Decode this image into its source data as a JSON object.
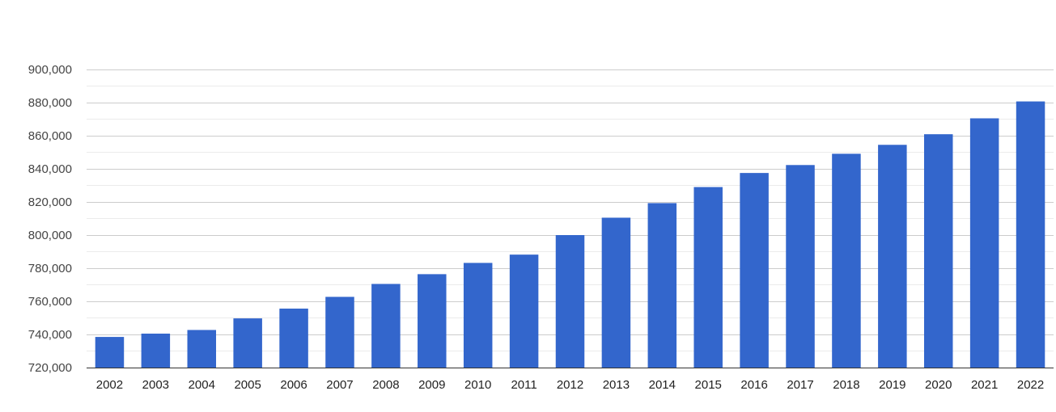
{
  "chart_data": {
    "type": "bar",
    "categories": [
      "2002",
      "2003",
      "2004",
      "2005",
      "2006",
      "2007",
      "2008",
      "2009",
      "2010",
      "2011",
      "2012",
      "2013",
      "2014",
      "2015",
      "2016",
      "2017",
      "2018",
      "2019",
      "2020",
      "2021",
      "2022"
    ],
    "values": [
      738500,
      740500,
      742700,
      749700,
      755600,
      762700,
      770500,
      776400,
      783200,
      788200,
      800000,
      810500,
      819300,
      829000,
      837500,
      842300,
      849100,
      854500,
      860900,
      870500,
      880700
    ],
    "ylim": [
      720000,
      900000
    ],
    "yticks": [
      720000,
      740000,
      760000,
      780000,
      800000,
      820000,
      840000,
      860000,
      880000,
      900000
    ],
    "ytick_labels": [
      "720,000",
      "740,000",
      "760,000",
      "780,000",
      "800,000",
      "820,000",
      "840,000",
      "860,000",
      "880,000",
      "900,000"
    ],
    "grid": true,
    "bar_color": "#3366cc",
    "grid_color": "#cccccc",
    "minor_grid_color": "#ebebeb"
  }
}
